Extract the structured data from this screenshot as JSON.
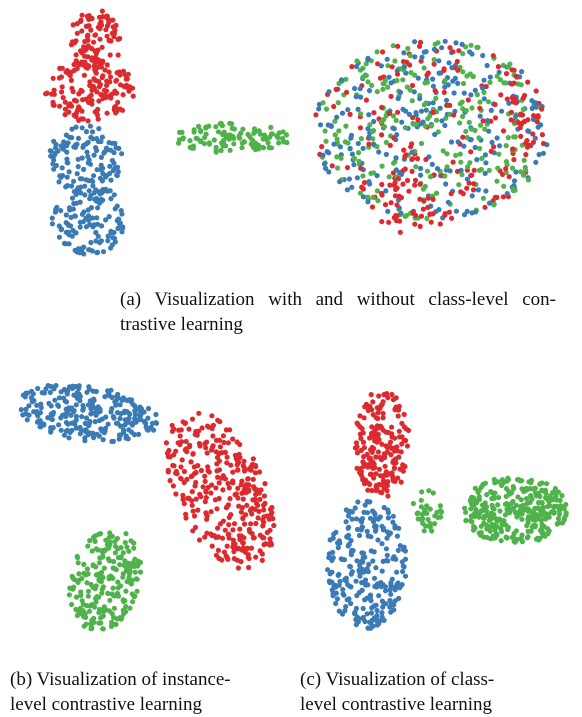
{
  "figure": {
    "panels": [
      {
        "caption_lines": [
          "(a) Visualization with and without class-level con-",
          "trastive learning"
        ]
      },
      {
        "caption_lines": [
          "(b) Visualization of instance-",
          "level contrastive learning"
        ]
      },
      {
        "caption_lines": [
          "(c) Visualization of class-",
          "level contrastive learning"
        ]
      }
    ]
  }
}
